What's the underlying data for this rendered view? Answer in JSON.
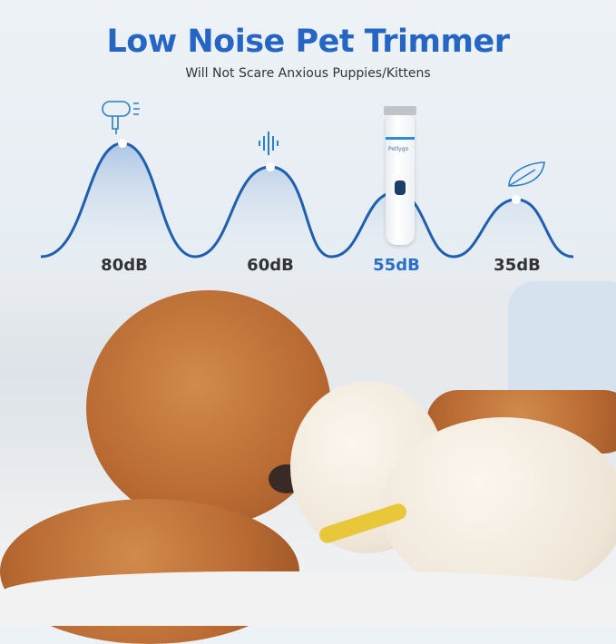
{
  "header": {
    "title": "Low Noise Pet Trimmer",
    "subtitle": "Will Not Scare Anxious Puppies/Kittens"
  },
  "levels": [
    {
      "label": "80dB",
      "icon": "hair-dryer-icon",
      "highlight": false
    },
    {
      "label": "60dB",
      "icon": "sound-wave-icon",
      "highlight": false
    },
    {
      "label": "55dB",
      "icon": "trimmer-image",
      "highlight": true
    },
    {
      "label": "35dB",
      "icon": "leaf-icon",
      "highlight": false
    }
  ],
  "colors": {
    "title": "#2566c4",
    "wave": "#1f5fae",
    "highlight": "#2a6fc9",
    "label": "#333333"
  },
  "product": {
    "brand": "Petlygo"
  }
}
